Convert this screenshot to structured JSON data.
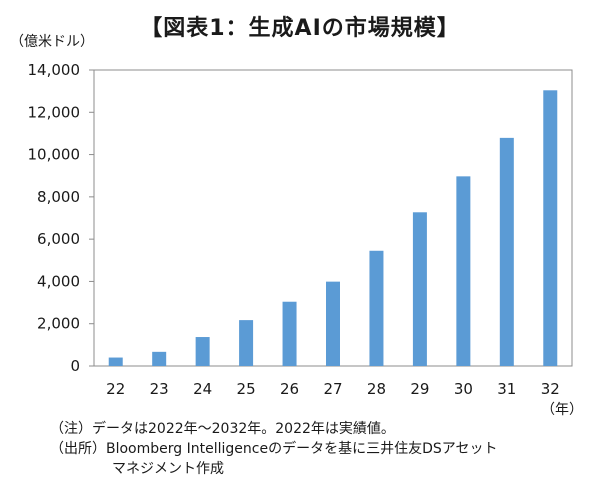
{
  "title": "【図表1：生成AIの市場規模】",
  "y_unit": "（億米ドル）",
  "x_unit": "（年）",
  "notes": [
    "（注）データは2022年～2032年。2022年は実績値。",
    "（出所）Bloomberg Intelligenceのデータを基に三井住友DSアセット",
    "マネジメント作成"
  ],
  "chart_data": {
    "type": "bar",
    "title": "【図表1：生成AIの市場規模】",
    "ylabel": "（億米ドル）",
    "xlabel": "（年）",
    "categories": [
      "22",
      "23",
      "24",
      "25",
      "26",
      "27",
      "28",
      "29",
      "30",
      "31",
      "32"
    ],
    "values": [
      400,
      670,
      1370,
      2170,
      3040,
      3990,
      5450,
      7270,
      8970,
      10790,
      13040
    ],
    "ylim": [
      0,
      14000
    ],
    "yticks": [
      0,
      2000,
      4000,
      6000,
      8000,
      10000,
      12000,
      14000
    ],
    "ytick_labels": [
      "0",
      "2,000",
      "4,000",
      "6,000",
      "8,000",
      "10,000",
      "12,000",
      "14,000"
    ],
    "bar_color": "#5b9bd5",
    "grid": false,
    "legend": "none"
  }
}
